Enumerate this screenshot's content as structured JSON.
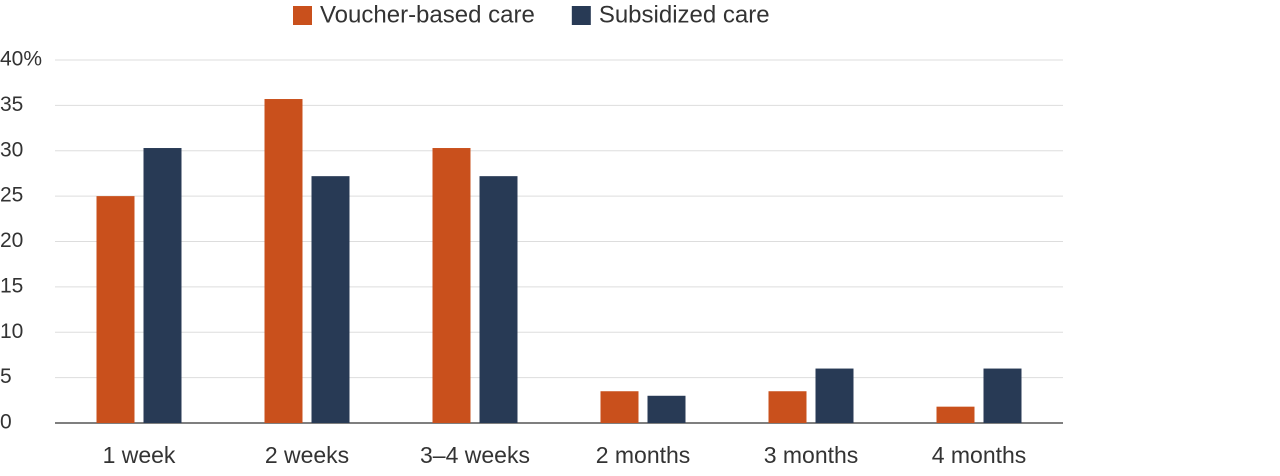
{
  "chart_data": {
    "type": "bar",
    "categories": [
      "1 week",
      "2 weeks",
      "3–4 weeks",
      "2 months",
      "3 months",
      "4 months"
    ],
    "series": [
      {
        "name": "Voucher-based care",
        "color": "#c9501c",
        "values": [
          25,
          35.7,
          30.3,
          3.5,
          3.5,
          1.8
        ]
      },
      {
        "name": "Subsidized care",
        "color": "#283a55",
        "values": [
          30.3,
          27.2,
          27.2,
          3.0,
          6.0,
          6.0
        ]
      }
    ],
    "ylim": [
      0,
      40
    ],
    "yticks": [
      0,
      5,
      10,
      15,
      20,
      25,
      30,
      35,
      {
        "value": 40,
        "label": "40%"
      }
    ],
    "grid": true,
    "legend": "top"
  }
}
